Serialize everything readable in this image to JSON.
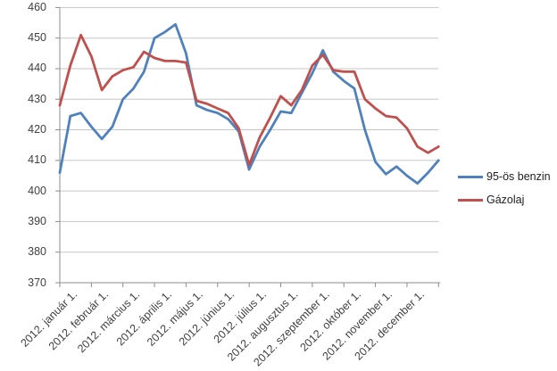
{
  "chart_data": {
    "type": "line",
    "title": "",
    "xlabel": "",
    "ylabel": "",
    "ylim": [
      370,
      460
    ],
    "y_ticks": [
      370,
      380,
      390,
      400,
      410,
      420,
      430,
      440,
      450,
      460
    ],
    "grid": true,
    "legend_position": "right",
    "categories": [
      "2012. január 1.",
      "2012. február 1.",
      "2012. március 1.",
      "2012. április 1.",
      "2012. május 1.",
      "2012. június 1.",
      "2012. július 1.",
      "2012. augusztus 1.",
      "2012. szeptember 1.",
      "2012. október 1.",
      "2012. november 1.",
      "2012. december 1."
    ],
    "points_per_category": 3,
    "series": [
      {
        "name": "95-ös benzin",
        "color": "#4F81BD",
        "values": [
          406,
          424.5,
          425.5,
          421,
          417,
          421,
          430,
          433.5,
          439,
          450,
          452,
          454.5,
          445,
          428,
          426.5,
          425.5,
          423.5,
          419.5,
          407,
          414.5,
          420,
          426,
          425.5,
          432,
          438.5,
          446,
          439,
          436,
          433.5,
          420,
          409.5,
          405.5,
          408,
          405,
          402.5,
          406,
          410
        ]
      },
      {
        "name": "Gázolaj",
        "color": "#C0504D",
        "values": [
          428,
          441,
          451,
          444,
          433,
          437.5,
          439.5,
          440.5,
          445.5,
          443.5,
          442.5,
          442.5,
          442,
          429.5,
          428.5,
          427,
          425.5,
          420.5,
          408.5,
          417.5,
          424,
          431,
          428,
          433,
          441,
          444.5,
          439.5,
          439,
          439,
          430,
          427,
          424.5,
          424,
          420.5,
          414.5,
          412.5,
          414.5
        ]
      }
    ],
    "colors": {
      "gridline": "#c6c6c6",
      "axis": "#8c8c8c",
      "tick_text": "#3f3f3f"
    }
  }
}
